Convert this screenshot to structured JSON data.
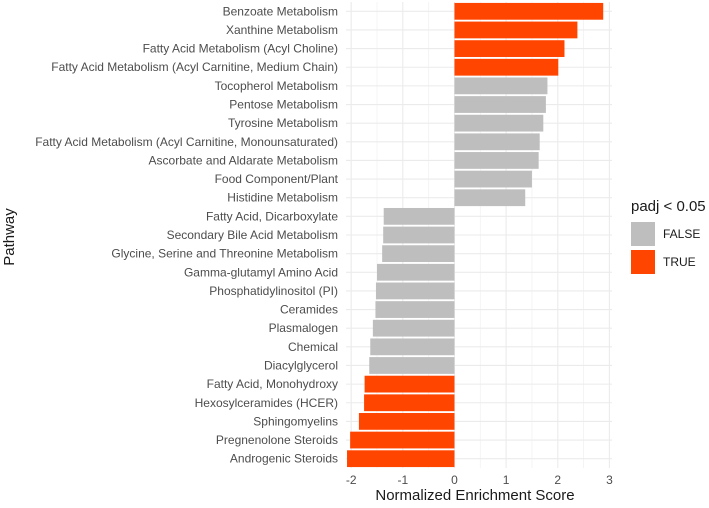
{
  "chart_data": {
    "type": "bar",
    "orientation": "horizontal",
    "xlabel": "Normalized Enrichment Score",
    "ylabel": "Pathway",
    "xlim": [
      -2.1,
      3.05
    ],
    "x_ticks": [
      -2,
      -1,
      0,
      1,
      2,
      3
    ],
    "grid": true,
    "legend": {
      "title": "padj < 0.05",
      "position": "right",
      "entries": [
        {
          "label": "FALSE",
          "color": "#bebebe"
        },
        {
          "label": "TRUE",
          "color": "#ff4500"
        }
      ]
    },
    "categories": [
      "Benzoate Metabolism",
      "Xanthine Metabolism",
      "Fatty Acid Metabolism (Acyl Choline)",
      "Fatty Acid Metabolism (Acyl Carnitine, Medium Chain)",
      "Tocopherol Metabolism",
      "Pentose Metabolism",
      "Tyrosine Metabolism",
      "Fatty Acid Metabolism (Acyl Carnitine, Monounsaturated)",
      "Ascorbate and Aldarate Metabolism",
      "Food Component/Plant",
      "Histidine Metabolism",
      "Fatty Acid, Dicarboxylate",
      "Secondary Bile Acid Metabolism",
      "Glycine, Serine and Threonine Metabolism",
      "Gamma-glutamyl Amino Acid",
      "Phosphatidylinositol (PI)",
      "Ceramides",
      "Plasmalogen",
      "Chemical",
      "Diacylglycerol",
      "Fatty Acid, Monohydroxy",
      "Hexosylceramides (HCER)",
      "Sphingomyelins",
      "Pregnenolone Steroids",
      "Androgenic Steroids"
    ],
    "values": [
      2.88,
      2.38,
      2.13,
      2.01,
      1.8,
      1.77,
      1.72,
      1.65,
      1.63,
      1.5,
      1.37,
      -1.37,
      -1.38,
      -1.4,
      -1.5,
      -1.52,
      -1.53,
      -1.58,
      -1.63,
      -1.65,
      -1.74,
      -1.75,
      -1.85,
      -2.02,
      -2.08
    ],
    "significant": [
      "TRUE",
      "TRUE",
      "TRUE",
      "TRUE",
      "FALSE",
      "FALSE",
      "FALSE",
      "FALSE",
      "FALSE",
      "FALSE",
      "FALSE",
      "FALSE",
      "FALSE",
      "FALSE",
      "FALSE",
      "FALSE",
      "FALSE",
      "FALSE",
      "FALSE",
      "FALSE",
      "TRUE",
      "TRUE",
      "TRUE",
      "TRUE",
      "TRUE"
    ]
  }
}
